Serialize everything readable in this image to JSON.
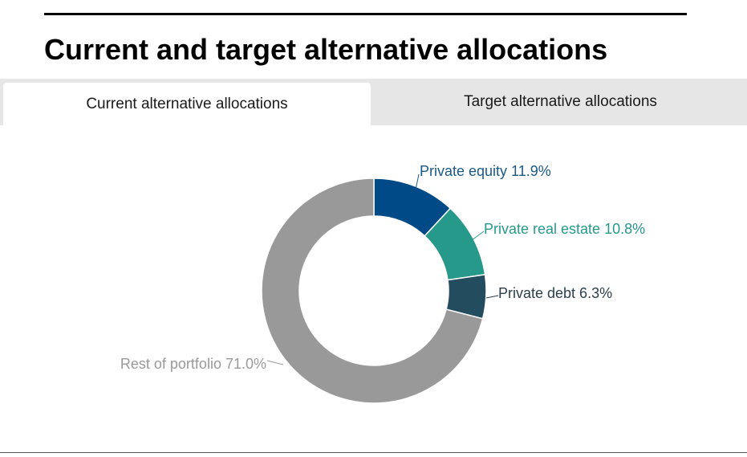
{
  "header": {
    "title": "Current and target alternative allocations"
  },
  "tabs": [
    {
      "label": "Current alternative allocations",
      "active": true
    },
    {
      "label": "Target alternative allocations",
      "active": false
    }
  ],
  "chart_data": {
    "type": "pie",
    "variant": "donut",
    "title": "",
    "legend": "none",
    "slices": [
      {
        "label": "Private equity",
        "value": 11.9,
        "display": "Private equity 11.9%",
        "color": "#004a87"
      },
      {
        "label": "Private real estate",
        "value": 10.8,
        "display": "Private real estate 10.8%",
        "color": "#26998a"
      },
      {
        "label": "Private debt",
        "value": 6.3,
        "display": "Private debt 6.3%",
        "color": "#244c5f"
      },
      {
        "label": "Rest of portfolio",
        "value": 71.0,
        "display": "Rest of portfolio 71.0%",
        "color": "#999999"
      }
    ],
    "label_colors": [
      "#1a5a86",
      "#26998a",
      "#2b3f4d",
      "#999999"
    ]
  }
}
